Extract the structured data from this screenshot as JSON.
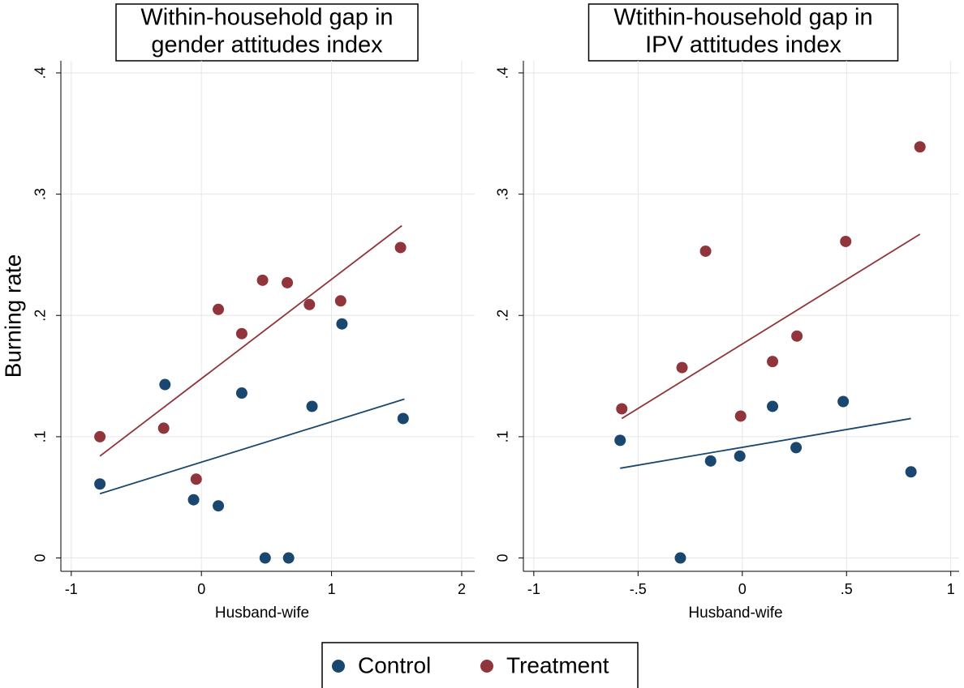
{
  "chart_data": [
    {
      "type": "scatter",
      "title": [
        "Within-household gap in",
        "gender attitudes index"
      ],
      "xlabel": "Husband-wife",
      "ylabel": "Burning rate",
      "legend": "bottom",
      "xlim": [
        -1.08,
        2.1
      ],
      "ylim": [
        -0.011,
        0.41
      ],
      "xticks": [
        -1,
        0,
        1,
        2
      ],
      "yticks": [
        0,
        {
          "value": 0.1,
          "label": ".1"
        },
        {
          "value": 0.2,
          "label": ".2"
        },
        {
          "value": 0.3,
          "label": ".3"
        },
        {
          "value": 0.4,
          "label": ".4"
        }
      ],
      "grid": true,
      "series": [
        {
          "name": "Control",
          "color": "#1a476f",
          "x": [
            -0.78,
            -0.28,
            -0.06,
            0.13,
            0.31,
            0.49,
            0.67,
            0.85,
            1.08,
            1.55
          ],
          "values": [
            0.061,
            0.143,
            0.048,
            0.043,
            0.136,
            0,
            0,
            0.125,
            0.193,
            0.115
          ],
          "fit": {
            "x": [
              -0.78,
              1.56
            ],
            "y": [
              0.053,
              0.131
            ]
          }
        },
        {
          "name": "Treatment",
          "color": "#90353b",
          "x": [
            -0.78,
            -0.29,
            -0.04,
            0.13,
            0.31,
            0.47,
            0.66,
            0.83,
            1.07,
            1.53
          ],
          "values": [
            0.1,
            0.107,
            0.065,
            0.205,
            0.185,
            0.229,
            0.227,
            0.209,
            0.212,
            0.256
          ],
          "fit": {
            "x": [
              -0.78,
              1.54
            ],
            "y": [
              0.084,
              0.274
            ]
          }
        }
      ]
    },
    {
      "type": "scatter",
      "title": [
        "Wtithin-household gap in",
        "IPV attitudes index"
      ],
      "xlabel": "Husband-wife",
      "xlim": [
        -1.05,
        1.04
      ],
      "ylim": [
        -0.011,
        0.41
      ],
      "xticks": [
        -1,
        {
          "value": -0.5,
          "label": "-.5"
        },
        0,
        {
          "value": 0.5,
          "label": ".5"
        },
        1
      ],
      "yticks": [
        0,
        {
          "value": 0.1,
          "label": ".1"
        },
        {
          "value": 0.2,
          "label": ".2"
        },
        {
          "value": 0.3,
          "label": ".3"
        },
        {
          "value": 0.4,
          "label": ".4"
        }
      ],
      "grid": true,
      "series": [
        {
          "name": "Control",
          "color": "#1a476f",
          "x": [
            -0.586,
            -0.297,
            -0.152,
            -0.012,
            0.145,
            0.258,
            0.484,
            0.809
          ],
          "values": [
            0.097,
            0,
            0.08,
            0.084,
            0.125,
            0.091,
            0.129,
            0.071
          ],
          "fit": {
            "x": [
              -0.586,
              0.809
            ],
            "y": [
              0.074,
              0.115
            ]
          }
        },
        {
          "name": "Treatment",
          "color": "#90353b",
          "x": [
            -0.578,
            -0.289,
            -0.176,
            -0.008,
            0.145,
            0.262,
            0.496,
            0.852
          ],
          "values": [
            0.123,
            0.157,
            0.253,
            0.117,
            0.162,
            0.183,
            0.261,
            0.339
          ],
          "fit": {
            "x": [
              -0.578,
              0.852
            ],
            "y": [
              0.115,
              0.267
            ]
          }
        }
      ]
    }
  ]
}
